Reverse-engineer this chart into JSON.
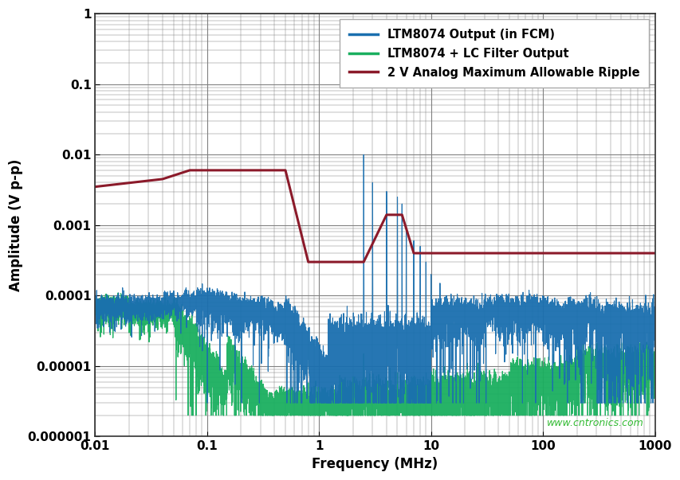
{
  "title": "",
  "xlabel": "Frequency (MHz)",
  "ylabel": "Amplitude (V p-p)",
  "xlim": [
    0.01,
    1000
  ],
  "ylim": [
    1e-06,
    1
  ],
  "background_color": "#ffffff",
  "grid_color": "#808080",
  "legend_labels": [
    "LTM8074 Output (in FCM)",
    "LTM8074 + LC Filter Output",
    "2 V Analog Maximum Allowable Ripple"
  ],
  "line_colors": [
    "#1a6faf",
    "#1aaf5f",
    "#8b1a2a"
  ],
  "ripple_x": [
    0.01,
    0.04,
    0.07,
    0.5,
    0.8,
    2.5,
    4.0,
    5.5,
    7.0,
    1000
  ],
  "ripple_y": [
    0.0035,
    0.0045,
    0.006,
    0.006,
    0.0003,
    0.0003,
    0.0014,
    0.0014,
    0.0004,
    0.0004
  ],
  "watermark": "www.cntronics.com",
  "watermark_color": "#33bb33",
  "ytick_labels": [
    "0.000001",
    "0.00001",
    "0.0001",
    "0.001",
    "0.01",
    "0.1",
    "1"
  ],
  "ytick_values": [
    1e-06,
    1e-05,
    0.0001,
    0.001,
    0.01,
    0.1,
    1
  ],
  "xtick_labels": [
    "0.01",
    "0.1",
    "1",
    "10",
    "100",
    "1000"
  ],
  "xtick_values": [
    0.01,
    0.1,
    1,
    10,
    100,
    1000
  ]
}
